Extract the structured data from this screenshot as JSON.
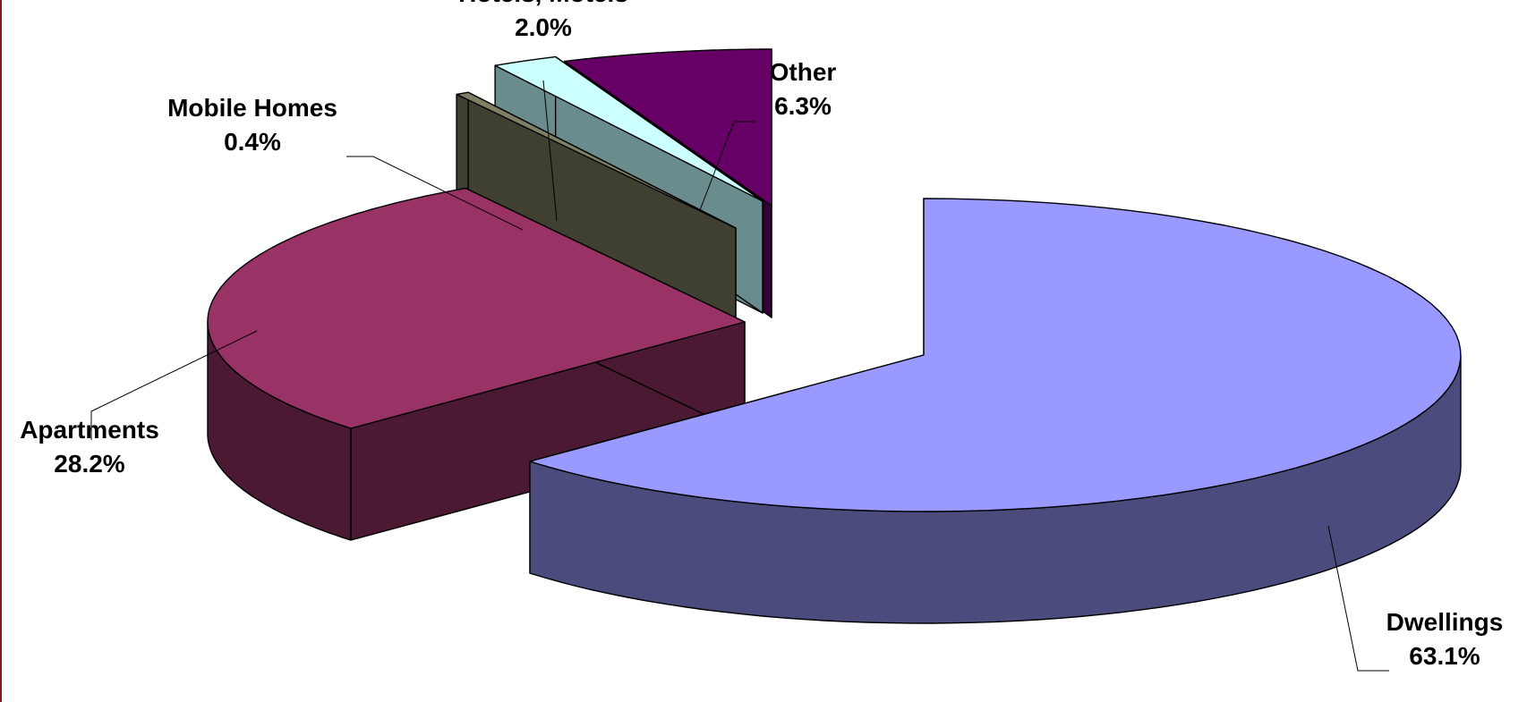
{
  "chart_data": {
    "type": "pie",
    "style": "3d-exploded",
    "title": "",
    "legend": "none",
    "slices": [
      {
        "name": "Dwellings",
        "value": 63.1,
        "label": "63.1%",
        "top_color": "#9999ff",
        "side_color": "#4b4b7e"
      },
      {
        "name": "Apartments",
        "value": 28.2,
        "label": "28.2%",
        "top_color": "#993366",
        "side_color": "#4b1932"
      },
      {
        "name": "Mobile Homes",
        "value": 0.4,
        "label": "0.4%",
        "top_color": "#7f7f66",
        "side_color": "#3f3f32"
      },
      {
        "name": "Hotels, Motels",
        "value": 2.0,
        "label": "2.0%",
        "top_color": "#ccffff",
        "side_color": "#6a8c8c"
      },
      {
        "name": "Other",
        "value": 6.3,
        "label": "6.3%",
        "top_color": "#660066",
        "side_color": "#330033"
      }
    ]
  }
}
